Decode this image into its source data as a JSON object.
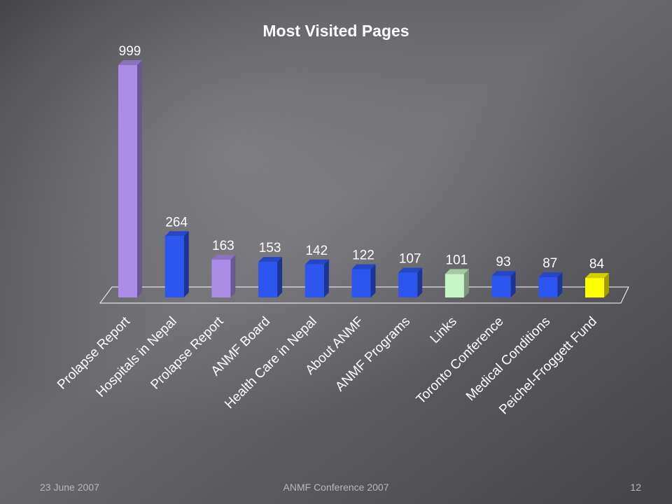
{
  "slide": {
    "footer_date": "23 June 2007",
    "footer_center": "ANMF Conference 2007",
    "page_number": "12"
  },
  "chart_data": {
    "type": "bar",
    "title": "Most Visited Pages",
    "xlabel": "",
    "ylabel": "",
    "ylim": [
      0,
      999
    ],
    "grid": false,
    "categories": [
      "Prolapse Report",
      "Hospitals in Nepal",
      "Prolapse Report",
      "ANMF Board",
      "Health Care in Nepal",
      "About ANMF",
      "ANMF Programs",
      "Links",
      "Toronto Conference",
      "Medical Conditions",
      "Peichel-Froggett Fund"
    ],
    "values": [
      999,
      264,
      163,
      153,
      142,
      122,
      107,
      101,
      93,
      87,
      84
    ],
    "colors": [
      "#a98de6",
      "#2d55f0",
      "#a98de6",
      "#2d55f0",
      "#2d55f0",
      "#2d55f0",
      "#2d55f0",
      "#c8f5c8",
      "#2d55f0",
      "#2d55f0",
      "#ffff00"
    ]
  }
}
